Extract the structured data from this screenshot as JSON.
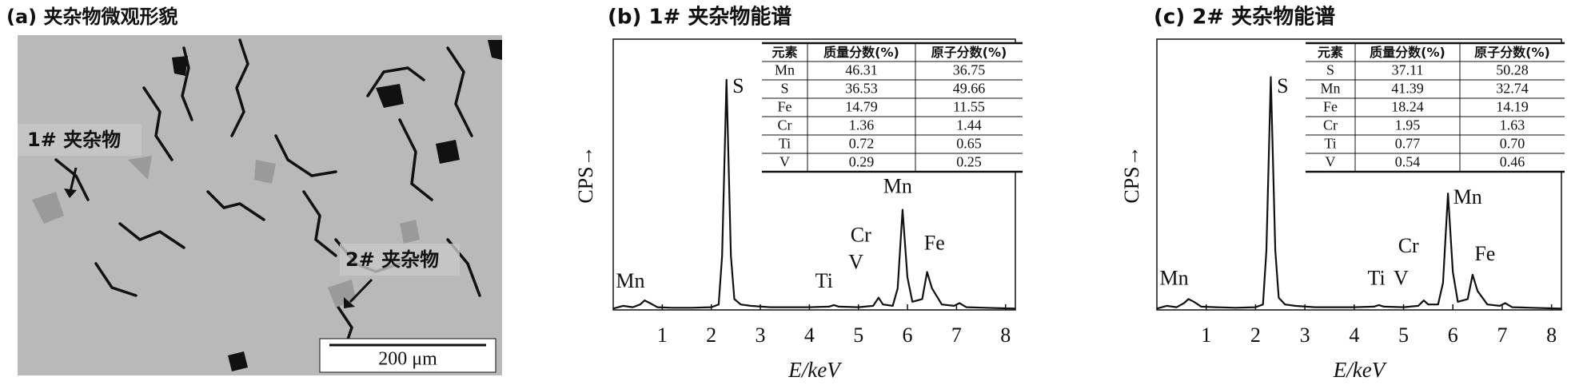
{
  "panel_a": {
    "title": "(a) 夹杂物微观形貌",
    "label_1": "1# 夹杂物",
    "label_2": "2# 夹杂物",
    "scale_bar": "200 μm"
  },
  "chart_data": [
    {
      "type": "line",
      "title": "(b) 1# 夹杂物能谱",
      "xlabel": "E/keV",
      "ylabel": "CPS→",
      "color": "#111111",
      "xlim": [
        0,
        8.2
      ],
      "xticks": [
        1,
        2,
        3,
        4,
        5,
        6,
        7,
        8
      ],
      "ylim": [
        0,
        100
      ],
      "x": [
        0,
        0.2,
        0.4,
        0.55,
        0.64,
        0.75,
        0.9,
        1.2,
        1.6,
        2.0,
        2.15,
        2.22,
        2.31,
        2.4,
        2.47,
        2.6,
        2.8,
        3.2,
        3.6,
        4.0,
        4.4,
        4.5,
        4.6,
        5.0,
        5.3,
        5.41,
        5.5,
        5.7,
        5.8,
        5.9,
        6.0,
        6.1,
        6.3,
        6.4,
        6.5,
        6.7,
        6.95,
        7.06,
        7.2,
        7.6,
        8.0,
        8.2
      ],
      "values": [
        0.5,
        1.5,
        1,
        2,
        3.5,
        2.5,
        1,
        0.8,
        0.8,
        1,
        2,
        20,
        85,
        20,
        4,
        2,
        1.5,
        1,
        1,
        1,
        1.2,
        1.8,
        1.2,
        1,
        1.5,
        4.5,
        2,
        1.5,
        8,
        37,
        12,
        3,
        4,
        14,
        8,
        2,
        1.5,
        2.5,
        1,
        0.8,
        0.6,
        0.5
      ],
      "peak_labels": [
        "Mn",
        "S",
        "Ti",
        "V",
        "Cr",
        "Mn",
        "Fe"
      ],
      "table": {
        "headers": [
          "元素",
          "质量分数(%)",
          "原子分数(%)"
        ],
        "rows": [
          [
            "Mn",
            "46.31",
            "36.75"
          ],
          [
            "S",
            "36.53",
            "49.66"
          ],
          [
            "Fe",
            "14.79",
            "11.55"
          ],
          [
            "Cr",
            "1.36",
            "1.44"
          ],
          [
            "Ti",
            "0.72",
            "0.65"
          ],
          [
            "V",
            "0.29",
            "0.25"
          ]
        ]
      }
    },
    {
      "type": "line",
      "title": "(c) 2# 夹杂物能谱",
      "xlabel": "E/keV",
      "ylabel": "CPS→",
      "color": "#111111",
      "xlim": [
        0,
        8.2
      ],
      "xticks": [
        1,
        2,
        3,
        4,
        5,
        6,
        7,
        8
      ],
      "ylim": [
        0,
        100
      ],
      "x": [
        0,
        0.2,
        0.4,
        0.55,
        0.64,
        0.75,
        0.9,
        1.2,
        1.6,
        2.0,
        2.15,
        2.22,
        2.31,
        2.4,
        2.47,
        2.6,
        2.8,
        3.2,
        3.6,
        4.0,
        4.4,
        4.5,
        4.6,
        5.0,
        5.3,
        5.41,
        5.5,
        5.7,
        5.8,
        5.9,
        6.0,
        6.1,
        6.3,
        6.4,
        6.5,
        6.7,
        6.95,
        7.06,
        7.2,
        7.6,
        8.0,
        8.2
      ],
      "values": [
        0.5,
        1.5,
        1,
        2.5,
        4,
        3,
        1.2,
        1,
        0.8,
        1,
        2,
        22,
        86,
        22,
        4.5,
        2,
        1.5,
        1,
        1,
        1,
        1.2,
        1.8,
        1.2,
        1,
        1.5,
        3.5,
        2,
        2,
        10,
        43,
        14,
        3,
        4,
        13,
        7,
        2,
        1.5,
        2.5,
        1,
        0.8,
        0.6,
        0.5
      ],
      "peak_labels": [
        "Mn",
        "S",
        "Ti",
        "V",
        "Cr",
        "Mn",
        "Fe"
      ],
      "table": {
        "headers": [
          "元素",
          "质量分数(%)",
          "原子分数(%)"
        ],
        "rows": [
          [
            "S",
            "37.11",
            "50.28"
          ],
          [
            "Mn",
            "41.39",
            "32.74"
          ],
          [
            "Fe",
            "18.24",
            "14.19"
          ],
          [
            "Cr",
            "1.95",
            "1.63"
          ],
          [
            "Ti",
            "0.77",
            "0.70"
          ],
          [
            "V",
            "0.54",
            "0.46"
          ]
        ]
      }
    }
  ]
}
